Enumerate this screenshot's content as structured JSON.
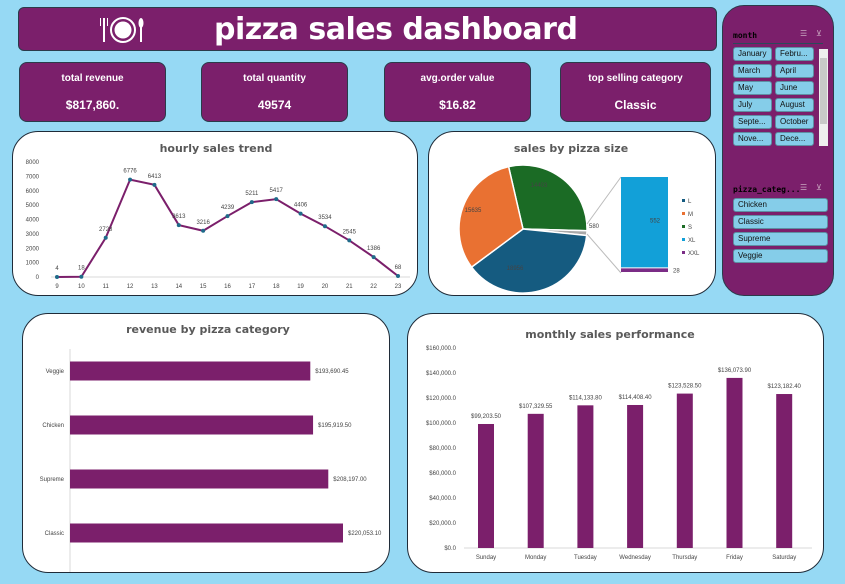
{
  "header": {
    "title": "pizza sales dashboard",
    "icon": "plate-fork-knife-icon"
  },
  "kpis": [
    {
      "label": "total revenue",
      "value": "$817,860."
    },
    {
      "label": "total quantity",
      "value": "49574"
    },
    {
      "label": "avg.order value",
      "value": "$16.82"
    },
    {
      "label": "top selling category",
      "value": "Classic"
    }
  ],
  "slicers": {
    "month": {
      "title": "month",
      "items": [
        "January",
        "Febru...",
        "March",
        "April",
        "May",
        "June",
        "July",
        "August",
        "Septe...",
        "October",
        "Nove...",
        "Dece..."
      ]
    },
    "category": {
      "title": "pizza_categ...",
      "items": [
        "Chicken",
        "Classic",
        "Supreme",
        "Veggie"
      ]
    }
  },
  "colors": {
    "brand": "#7b1f6b",
    "background": "#96d9f4",
    "line": "#7b1f6b",
    "marker": "#1f6b8a",
    "L": "#155b80",
    "M": "#e97132",
    "S": "#1b6b25",
    "XL": "#12a0d8",
    "XXL": "#7b2c86"
  },
  "chart_data": [
    {
      "type": "line",
      "title": "hourly sales trend",
      "x": [
        9,
        10,
        11,
        12,
        13,
        14,
        15,
        16,
        17,
        18,
        19,
        20,
        21,
        22,
        23
      ],
      "values": [
        4,
        18,
        2728,
        6776,
        6413,
        3613,
        3216,
        4239,
        5211,
        5417,
        4406,
        3534,
        2545,
        1386,
        68
      ],
      "ylim": [
        0,
        8000
      ],
      "yticks": [
        "0",
        "1000",
        "2000",
        "3000",
        "4000",
        "5000",
        "6000",
        "7000",
        "8000"
      ],
      "grid": false
    },
    {
      "type": "pie",
      "title": "sales by pizza size",
      "variant": "bar-of-pie",
      "slices": [
        {
          "name": "S",
          "value": 14403
        },
        {
          "name": "Other",
          "value": 580
        },
        {
          "name": "L",
          "value": 18956
        },
        {
          "name": "M",
          "value": 15635
        }
      ],
      "secondary": [
        {
          "name": "XL",
          "value": 552
        },
        {
          "name": "XXL",
          "value": 28
        }
      ],
      "legend": [
        "L",
        "M",
        "S",
        "XL",
        "XXL"
      ],
      "legend_position": "right"
    },
    {
      "type": "bar",
      "orientation": "horizontal",
      "title": "revenue by pizza category",
      "categories": [
        "Veggie",
        "Chicken",
        "Supreme",
        "Classic"
      ],
      "values": [
        193690.45,
        195919.5,
        208197.0,
        220053.1
      ],
      "labels": [
        "$193,690.45",
        "$195,919.50",
        "$208,197.00",
        "$220,053.10"
      ]
    },
    {
      "type": "bar",
      "title": "monthly sales performance",
      "categories": [
        "Sunday",
        "Monday",
        "Tuesday",
        "Wednesday",
        "Thursday",
        "Friday",
        "Saturday"
      ],
      "values": [
        99203.5,
        107329.55,
        114133.8,
        114408.4,
        123528.5,
        136073.9,
        123182.4
      ],
      "labels": [
        "$99,203.50",
        "$107,329.55",
        "$114,133.80",
        "$114,408.40",
        "$123,528.50",
        "$136,073.90",
        "$123,182.40"
      ],
      "ylim": [
        0,
        160000
      ],
      "yticks": [
        "$0.0",
        "$20,000.0",
        "$40,000.0",
        "$60,000.0",
        "$80,000.0",
        "$100,000.0",
        "$120,000.0",
        "$140,000.0",
        "$160,000.0"
      ]
    }
  ]
}
